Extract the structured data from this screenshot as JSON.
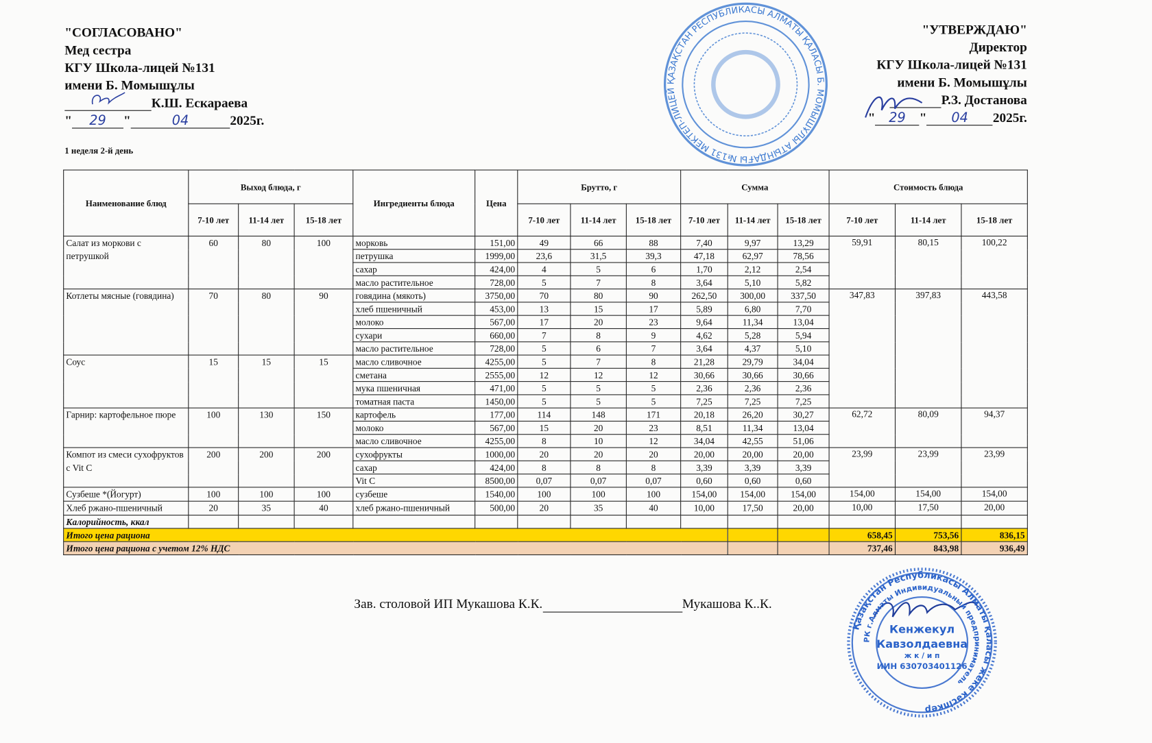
{
  "approval_left": {
    "title": "\"СОГЛАСОВАНО\"",
    "role": "Мед сестра",
    "org": "КГУ Школа-лицей №131",
    "org_name": "имени Б. Момышұлы",
    "signer": "К.Ш. Ескараева",
    "day": "29",
    "month": "04",
    "year": "2025г."
  },
  "approval_right": {
    "title": "\"УТВЕРЖДАЮ\"",
    "role": "Директор",
    "org": "КГУ Школа-лицей №131",
    "org_name": "имени Б. Момышұлы",
    "signer": "Р.З. Достанова",
    "day": "29",
    "month": "04",
    "year": "2025г."
  },
  "week_day": "1 неделя 2-й день",
  "table": {
    "headers": {
      "dish": "Наименование блюд",
      "yield": "Выход блюда, г",
      "ingredients": "Ингредиенты блюда",
      "price": "Цена",
      "brutto": "Брутто, г",
      "sum": "Сумма",
      "cost": "Стоимость блюда",
      "ages": [
        "7-10 лет",
        "11-14 лет",
        "15-18 лет"
      ]
    },
    "dishes": [
      {
        "name": "Салат из моркови с петрушкой",
        "yield": [
          "60",
          "80",
          "100"
        ],
        "cost": [
          "59,91",
          "80,15",
          "100,22"
        ],
        "ingredients": [
          {
            "name": "морковь",
            "price": "151,00",
            "brutto": [
              "49",
              "66",
              "88"
            ],
            "sum": [
              "7,40",
              "9,97",
              "13,29"
            ]
          },
          {
            "name": "петрушка",
            "price": "1999,00",
            "brutto": [
              "23,6",
              "31,5",
              "39,3"
            ],
            "sum": [
              "47,18",
              "62,97",
              "78,56"
            ]
          },
          {
            "name": "сахар",
            "price": "424,00",
            "brutto": [
              "4",
              "5",
              "6"
            ],
            "sum": [
              "1,70",
              "2,12",
              "2,54"
            ]
          },
          {
            "name": "масло растительное",
            "price": "728,00",
            "brutto": [
              "5",
              "7",
              "8"
            ],
            "sum": [
              "3,64",
              "5,10",
              "5,82"
            ]
          }
        ]
      },
      {
        "name": "Котлеты мясные (говядина)",
        "yield": [
          "70",
          "80",
          "90"
        ],
        "cost": [
          "347,83",
          "397,83",
          "443,58"
        ],
        "ingredients": [
          {
            "name": "говядина (мякоть)",
            "price": "3750,00",
            "brutto": [
              "70",
              "80",
              "90"
            ],
            "sum": [
              "262,50",
              "300,00",
              "337,50"
            ]
          },
          {
            "name": "хлеб пшеничный",
            "price": "453,00",
            "brutto": [
              "13",
              "15",
              "17"
            ],
            "sum": [
              "5,89",
              "6,80",
              "7,70"
            ]
          },
          {
            "name": "молоко",
            "price": "567,00",
            "brutto": [
              "17",
              "20",
              "23"
            ],
            "sum": [
              "9,64",
              "11,34",
              "13,04"
            ]
          },
          {
            "name": "сухари",
            "price": "660,00",
            "brutto": [
              "7",
              "8",
              "9"
            ],
            "sum": [
              "4,62",
              "5,28",
              "5,94"
            ]
          },
          {
            "name": "масло растительное",
            "price": "728,00",
            "brutto": [
              "5",
              "6",
              "7"
            ],
            "sum": [
              "3,64",
              "4,37",
              "5,10"
            ]
          }
        ]
      },
      {
        "name": "Соус",
        "yield": [
          "15",
          "15",
          "15"
        ],
        "cost": null,
        "ingredients": [
          {
            "name": "масло сливочное",
            "price": "4255,00",
            "brutto": [
              "5",
              "7",
              "8"
            ],
            "sum": [
              "21,28",
              "29,79",
              "34,04"
            ]
          },
          {
            "name": "сметана",
            "price": "2555,00",
            "brutto": [
              "12",
              "12",
              "12"
            ],
            "sum": [
              "30,66",
              "30,66",
              "30,66"
            ]
          },
          {
            "name": "мука пшеничная",
            "price": "471,00",
            "brutto": [
              "5",
              "5",
              "5"
            ],
            "sum": [
              "2,36",
              "2,36",
              "2,36"
            ]
          },
          {
            "name": "томатная паста",
            "price": "1450,00",
            "brutto": [
              "5",
              "5",
              "5"
            ],
            "sum": [
              "7,25",
              "7,25",
              "7,25"
            ]
          }
        ]
      },
      {
        "name": "Гарнир:  картофельное пюре",
        "yield": [
          "100",
          "130",
          "150"
        ],
        "cost": [
          "62,72",
          "80,09",
          "94,37"
        ],
        "ingredients": [
          {
            "name": "картофель",
            "price": "177,00",
            "brutto": [
              "114",
              "148",
              "171"
            ],
            "sum": [
              "20,18",
              "26,20",
              "30,27"
            ]
          },
          {
            "name": "молоко",
            "price": "567,00",
            "brutto": [
              "15",
              "20",
              "23"
            ],
            "sum": [
              "8,51",
              "11,34",
              "13,04"
            ]
          },
          {
            "name": "масло сливочное",
            "price": "4255,00",
            "brutto": [
              "8",
              "10",
              "12"
            ],
            "sum": [
              "34,04",
              "42,55",
              "51,06"
            ]
          }
        ]
      },
      {
        "name": "Компот из смеси сухофруктов с Vit C",
        "yield": [
          "200",
          "200",
          "200"
        ],
        "cost": [
          "23,99",
          "23,99",
          "23,99"
        ],
        "ingredients": [
          {
            "name": "сухофрукты",
            "price": "1000,00",
            "brutto": [
              "20",
              "20",
              "20"
            ],
            "sum": [
              "20,00",
              "20,00",
              "20,00"
            ]
          },
          {
            "name": "сахар",
            "price": "424,00",
            "brutto": [
              "8",
              "8",
              "8"
            ],
            "sum": [
              "3,39",
              "3,39",
              "3,39"
            ]
          },
          {
            "name": "Vit C",
            "price": "8500,00",
            "brutto": [
              "0,07",
              "0,07",
              "0,07"
            ],
            "sum": [
              "0,60",
              "0,60",
              "0,60"
            ]
          }
        ]
      },
      {
        "name": "Сузбеше *(Йогурт)",
        "yield": [
          "100",
          "100",
          "100"
        ],
        "cost": [
          "154,00",
          "154,00",
          "154,00"
        ],
        "ingredients": [
          {
            "name": "сузбеше",
            "price": "1540,00",
            "brutto": [
              "100",
              "100",
              "100"
            ],
            "sum": [
              "154,00",
              "154,00",
              "154,00"
            ]
          }
        ]
      },
      {
        "name": "Хлеб ржано-пшеничный",
        "yield": [
          "20",
          "35",
          "40"
        ],
        "cost": [
          "10,00",
          "17,50",
          "20,00"
        ],
        "ingredients": [
          {
            "name": "хлеб ржано-пшеничный",
            "price": "500,00",
            "brutto": [
              "20",
              "35",
              "40"
            ],
            "sum": [
              "10,00",
              "17,50",
              "20,00"
            ]
          }
        ]
      }
    ],
    "calories_label": "Калорийность, ккал",
    "total": {
      "label": "Итого цена рациона",
      "values": [
        "658,45",
        "753,56",
        "836,15"
      ],
      "color": "#ffd700"
    },
    "total_vat": {
      "label": "Итого цена рациона с учетом 12% НДС",
      "values": [
        "737,46",
        "843,98",
        "936,49"
      ],
      "color": "#f3d2b4"
    }
  },
  "footer": {
    "left": "Зав. столовой ИП Мукашова К.К.",
    "right": "Мукашова К..К."
  },
  "stamps": {
    "school": "ҚАЗАҚСТАН РЕСПУБЛИКАСЫ АЛМАТЫ ҚАЛАСЫ Б. МОМЫШҰЛЫ АТЫНДАҒЫ №131 МЕКТЕП-ЛИЦЕЙ",
    "ip_outer": "Қазақстан Республикасы Алматы қаласы жеке кәсіпкер",
    "ip_inner": "РК г.Алматы Индивидуальный предприниматель",
    "ip_name1": "Кенжекул",
    "ip_name2": "Кавзолдаевна",
    "ip_type": "ж к / и п",
    "ip_iin": "ИИН 630703401126",
    "ink_color": "#2a62c9"
  }
}
